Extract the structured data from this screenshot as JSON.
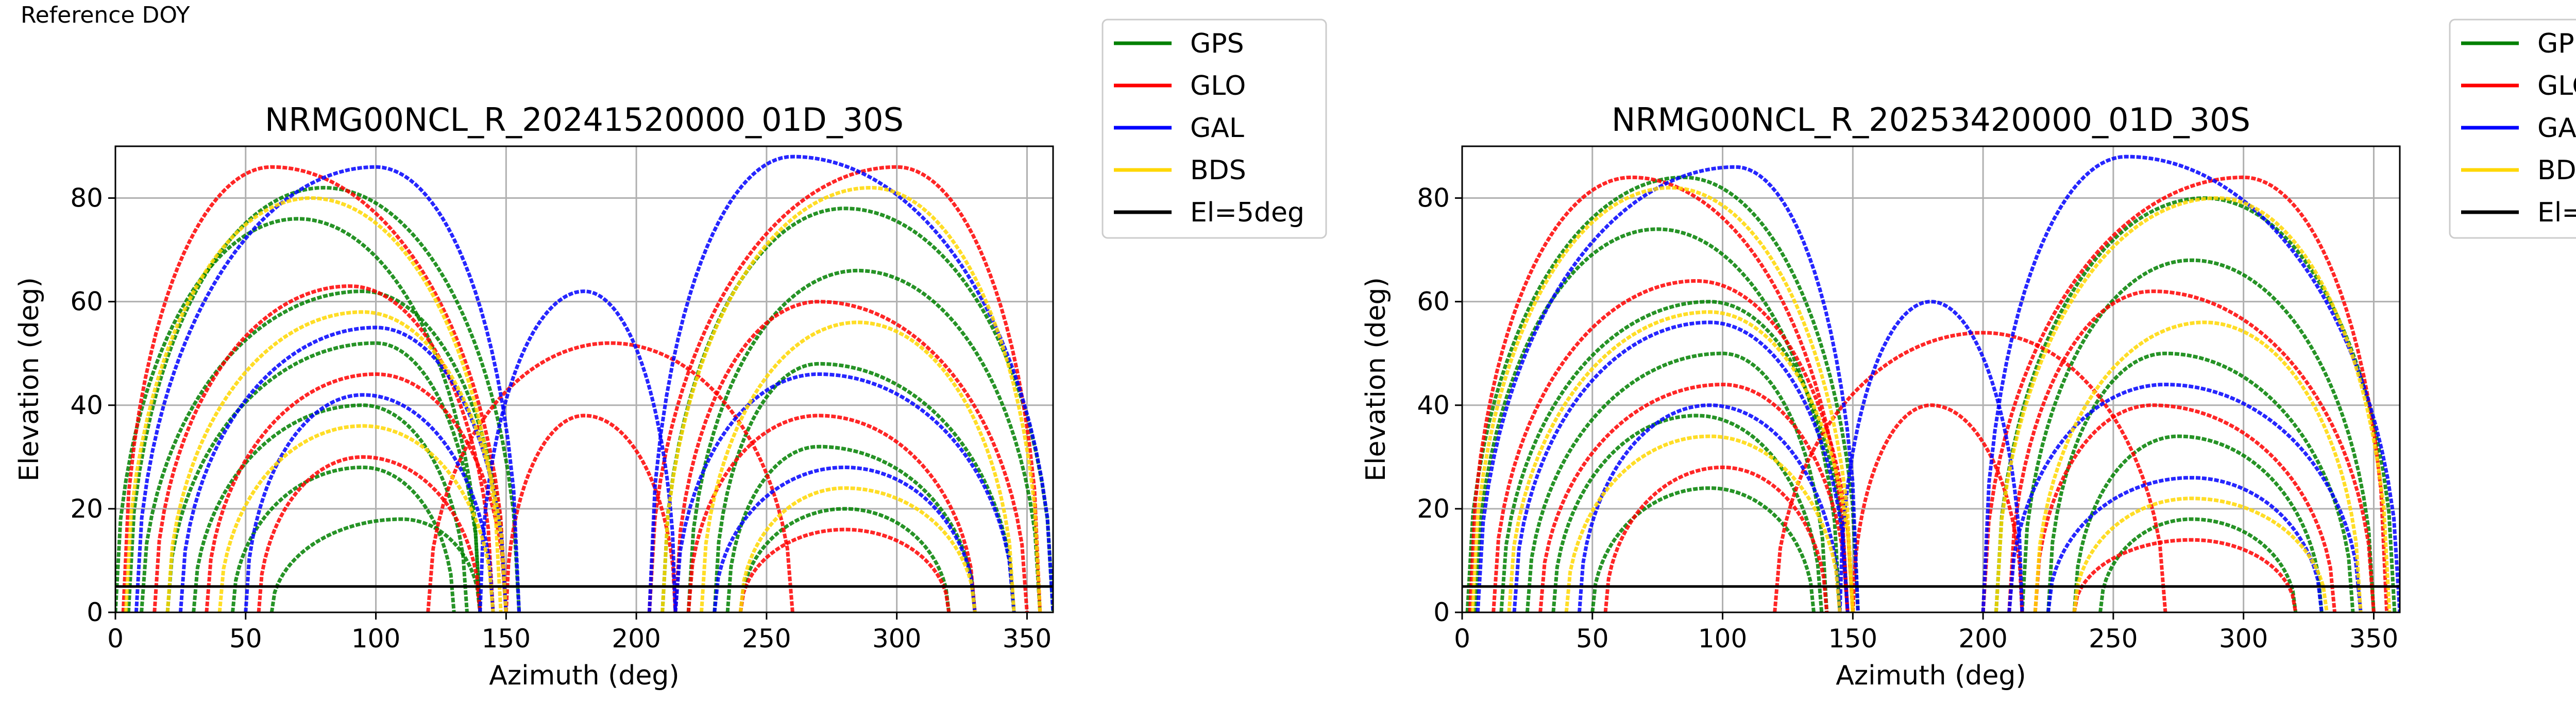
{
  "figure": {
    "reference_label": "Reference DOY"
  },
  "colors": {
    "GPS": "#008000",
    "GLO": "#ff0000",
    "GAL": "#0000ff",
    "BDS": "#ffd700",
    "El=5deg": "#000000"
  },
  "legend": [
    "GPS",
    "GLO",
    "GAL",
    "BDS",
    "El=5deg"
  ],
  "chart_data": [
    {
      "type": "line",
      "title": "NRMG00NCL_R_20241520000_01D_30S",
      "xlabel": "Azimuth (deg)",
      "ylabel": "Elevation (deg)",
      "xlim": [
        0,
        360
      ],
      "ylim": [
        0,
        90
      ],
      "xticks": [
        0,
        50,
        100,
        150,
        200,
        250,
        300,
        350
      ],
      "yticks": [
        0,
        20,
        40,
        60,
        80
      ],
      "grid": true,
      "legend_placement": "outside-right-top",
      "threshold_line": {
        "name": "El=5deg",
        "y": 5
      },
      "series": [
        {
          "name": "GPS",
          "tracks": [
            {
              "az0": 5,
              "az1": 155,
              "peak_az": 80,
              "peak_el": 82
            },
            {
              "az0": 0,
              "az1": 140,
              "peak_az": 70,
              "peak_el": 76
            },
            {
              "az0": 10,
              "az1": 150,
              "peak_az": 95,
              "peak_el": 62
            },
            {
              "az0": 20,
              "az1": 140,
              "peak_az": 100,
              "peak_el": 52
            },
            {
              "az0": 30,
              "az1": 135,
              "peak_az": 95,
              "peak_el": 40
            },
            {
              "az0": 45,
              "az1": 130,
              "peak_az": 95,
              "peak_el": 28
            },
            {
              "az0": 60,
              "az1": 140,
              "peak_az": 110,
              "peak_el": 18
            },
            {
              "az0": 210,
              "az1": 360,
              "peak_az": 280,
              "peak_el": 78
            },
            {
              "az0": 220,
              "az1": 355,
              "peak_az": 285,
              "peak_el": 66
            },
            {
              "az0": 230,
              "az1": 345,
              "peak_az": 270,
              "peak_el": 48
            },
            {
              "az0": 235,
              "az1": 330,
              "peak_az": 270,
              "peak_el": 32
            },
            {
              "az0": 240,
              "az1": 320,
              "peak_az": 280,
              "peak_el": 20
            }
          ]
        },
        {
          "name": "GLO",
          "tracks": [
            {
              "az0": 3,
              "az1": 150,
              "peak_az": 60,
              "peak_el": 86
            },
            {
              "az0": 15,
              "az1": 145,
              "peak_az": 90,
              "peak_el": 63
            },
            {
              "az0": 35,
              "az1": 150,
              "peak_az": 100,
              "peak_el": 46
            },
            {
              "az0": 55,
              "az1": 140,
              "peak_az": 95,
              "peak_el": 30
            },
            {
              "az0": 150,
              "az1": 215,
              "peak_az": 180,
              "peak_el": 38
            },
            {
              "az0": 120,
              "az1": 260,
              "peak_az": 190,
              "peak_el": 52
            },
            {
              "az0": 205,
              "az1": 355,
              "peak_az": 300,
              "peak_el": 86
            },
            {
              "az0": 215,
              "az1": 350,
              "peak_az": 270,
              "peak_el": 60
            },
            {
              "az0": 220,
              "az1": 330,
              "peak_az": 270,
              "peak_el": 38
            },
            {
              "az0": 240,
              "az1": 320,
              "peak_az": 280,
              "peak_el": 16
            }
          ]
        },
        {
          "name": "GAL",
          "tracks": [
            {
              "az0": 8,
              "az1": 155,
              "peak_az": 100,
              "peak_el": 86
            },
            {
              "az0": 25,
              "az1": 150,
              "peak_az": 100,
              "peak_el": 55
            },
            {
              "az0": 50,
              "az1": 145,
              "peak_az": 95,
              "peak_el": 42
            },
            {
              "az0": 140,
              "az1": 215,
              "peak_az": 180,
              "peak_el": 62
            },
            {
              "az0": 205,
              "az1": 360,
              "peak_az": 260,
              "peak_el": 88
            },
            {
              "az0": 215,
              "az1": 345,
              "peak_az": 270,
              "peak_el": 46
            },
            {
              "az0": 230,
              "az1": 330,
              "peak_az": 280,
              "peak_el": 28
            }
          ]
        },
        {
          "name": "BDS",
          "tracks": [
            {
              "az0": 4,
              "az1": 148,
              "peak_az": 75,
              "peak_el": 80
            },
            {
              "az0": 20,
              "az1": 150,
              "peak_az": 95,
              "peak_el": 58
            },
            {
              "az0": 40,
              "az1": 145,
              "peak_az": 95,
              "peak_el": 36
            },
            {
              "az0": 210,
              "az1": 355,
              "peak_az": 290,
              "peak_el": 82
            },
            {
              "az0": 225,
              "az1": 345,
              "peak_az": 285,
              "peak_el": 56
            },
            {
              "az0": 240,
              "az1": 330,
              "peak_az": 280,
              "peak_el": 24
            }
          ]
        }
      ]
    },
    {
      "type": "line",
      "title": "NRMG00NCL_R_20253420000_01D_30S",
      "xlabel": "Azimuth (deg)",
      "ylabel": "Elevation (deg)",
      "xlim": [
        0,
        360
      ],
      "ylim": [
        0,
        90
      ],
      "xticks": [
        0,
        50,
        100,
        150,
        200,
        250,
        300,
        350
      ],
      "yticks": [
        0,
        20,
        40,
        60,
        80
      ],
      "grid": true,
      "legend_placement": "outside-right-top",
      "threshold_line": {
        "name": "El=5deg",
        "y": 5
      },
      "series": [
        {
          "name": "GPS",
          "tracks": [
            {
              "az0": 2,
              "az1": 152,
              "peak_az": 85,
              "peak_el": 84
            },
            {
              "az0": 5,
              "az1": 145,
              "peak_az": 75,
              "peak_el": 74
            },
            {
              "az0": 15,
              "az1": 148,
              "peak_az": 95,
              "peak_el": 60
            },
            {
              "az0": 25,
              "az1": 140,
              "peak_az": 100,
              "peak_el": 50
            },
            {
              "az0": 35,
              "az1": 138,
              "peak_az": 90,
              "peak_el": 38
            },
            {
              "az0": 50,
              "az1": 135,
              "peak_az": 95,
              "peak_el": 24
            },
            {
              "az0": 205,
              "az1": 358,
              "peak_az": 285,
              "peak_el": 80
            },
            {
              "az0": 215,
              "az1": 350,
              "peak_az": 280,
              "peak_el": 68
            },
            {
              "az0": 225,
              "az1": 342,
              "peak_az": 270,
              "peak_el": 50
            },
            {
              "az0": 235,
              "az1": 330,
              "peak_az": 275,
              "peak_el": 34
            },
            {
              "az0": 245,
              "az1": 320,
              "peak_az": 280,
              "peak_el": 18
            }
          ]
        },
        {
          "name": "GLO",
          "tracks": [
            {
              "az0": 3,
              "az1": 148,
              "peak_az": 65,
              "peak_el": 84
            },
            {
              "az0": 12,
              "az1": 150,
              "peak_az": 90,
              "peak_el": 64
            },
            {
              "az0": 30,
              "az1": 148,
              "peak_az": 100,
              "peak_el": 44
            },
            {
              "az0": 55,
              "az1": 140,
              "peak_az": 100,
              "peak_el": 28
            },
            {
              "az0": 150,
              "az1": 215,
              "peak_az": 180,
              "peak_el": 40
            },
            {
              "az0": 120,
              "az1": 270,
              "peak_az": 200,
              "peak_el": 54
            },
            {
              "az0": 200,
              "az1": 355,
              "peak_az": 300,
              "peak_el": 84
            },
            {
              "az0": 210,
              "az1": 350,
              "peak_az": 265,
              "peak_el": 62
            },
            {
              "az0": 220,
              "az1": 335,
              "peak_az": 265,
              "peak_el": 40
            },
            {
              "az0": 235,
              "az1": 320,
              "peak_az": 280,
              "peak_el": 14
            }
          ]
        },
        {
          "name": "GAL",
          "tracks": [
            {
              "az0": 6,
              "az1": 152,
              "peak_az": 105,
              "peak_el": 86
            },
            {
              "az0": 20,
              "az1": 148,
              "peak_az": 95,
              "peak_el": 56
            },
            {
              "az0": 45,
              "az1": 145,
              "peak_az": 95,
              "peak_el": 40
            },
            {
              "az0": 145,
              "az1": 215,
              "peak_az": 180,
              "peak_el": 60
            },
            {
              "az0": 200,
              "az1": 360,
              "peak_az": 255,
              "peak_el": 88
            },
            {
              "az0": 210,
              "az1": 345,
              "peak_az": 270,
              "peak_el": 44
            },
            {
              "az0": 225,
              "az1": 330,
              "peak_az": 280,
              "peak_el": 26
            }
          ]
        },
        {
          "name": "BDS",
          "tracks": [
            {
              "az0": 4,
              "az1": 150,
              "peak_az": 80,
              "peak_el": 82
            },
            {
              "az0": 18,
              "az1": 150,
              "peak_az": 95,
              "peak_el": 58
            },
            {
              "az0": 40,
              "az1": 145,
              "peak_az": 95,
              "peak_el": 34
            },
            {
              "az0": 205,
              "az1": 356,
              "peak_az": 290,
              "peak_el": 80
            },
            {
              "az0": 220,
              "az1": 345,
              "peak_az": 285,
              "peak_el": 56
            },
            {
              "az0": 235,
              "az1": 332,
              "peak_az": 280,
              "peak_el": 22
            }
          ]
        }
      ]
    }
  ]
}
